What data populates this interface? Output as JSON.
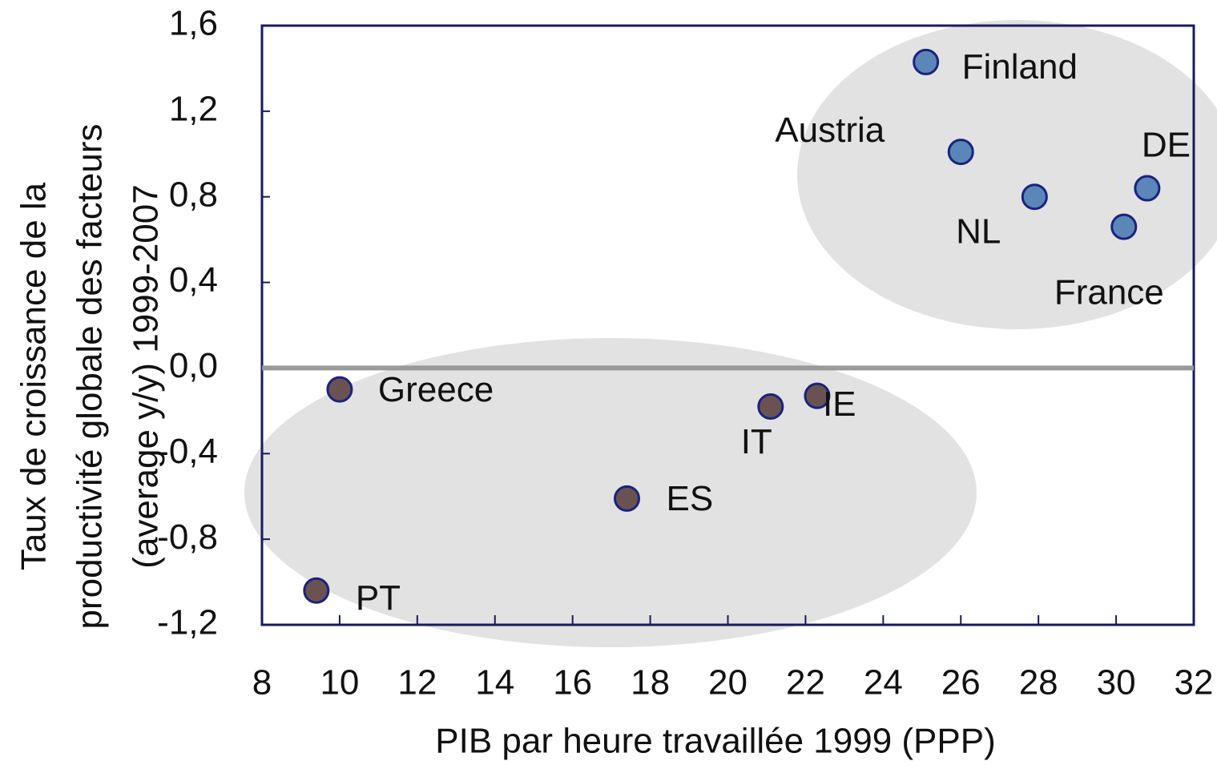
{
  "chart_data": {
    "type": "scatter",
    "xlabel": "PIB par heure travaillée 1999 (PPP)",
    "ylabel": [
      "Taux de croissance de la",
      "productivité globale des facteurs",
      "(average y/y) 1999-2007"
    ],
    "xlim": [
      8,
      32
    ],
    "ylim": [
      -1.2,
      1.6
    ],
    "xticks": [
      8,
      10,
      12,
      14,
      16,
      18,
      20,
      22,
      24,
      26,
      28,
      30,
      32
    ],
    "yticks": [
      {
        "value": 1.6,
        "label": "1,6"
      },
      {
        "value": 1.2,
        "label": "1,2"
      },
      {
        "value": 0.8,
        "label": "0,8"
      },
      {
        "value": 0.4,
        "label": "0,4"
      },
      {
        "value": 0.0,
        "label": "0,0"
      },
      {
        "value": -0.4,
        "label": "-0,4"
      },
      {
        "value": -0.8,
        "label": "-0,8"
      },
      {
        "value": -1.2,
        "label": "-1,2"
      }
    ],
    "points": [
      {
        "label": "Finland",
        "x": 25.1,
        "y": 1.43,
        "color": "#5b86b8"
      },
      {
        "label": "Austria",
        "x": 26.0,
        "y": 1.01,
        "color": "#5b86b8"
      },
      {
        "label": "NL",
        "x": 27.9,
        "y": 0.8,
        "color": "#5b86b8"
      },
      {
        "label": "DE",
        "x": 30.8,
        "y": 0.84,
        "color": "#5b86b8"
      },
      {
        "label": "France",
        "x": 30.2,
        "y": 0.66,
        "color": "#5b86b8"
      },
      {
        "label": "Greece",
        "x": 10.0,
        "y": -0.1,
        "color": "#6b5252"
      },
      {
        "label": "IT",
        "x": 21.1,
        "y": -0.18,
        "color": "#6b5252"
      },
      {
        "label": "IE",
        "x": 22.3,
        "y": -0.13,
        "color": "#6b5252"
      },
      {
        "label": "ES",
        "x": 17.4,
        "y": -0.61,
        "color": "#6b5252"
      },
      {
        "label": "PT",
        "x": 9.4,
        "y": -1.04,
        "color": "#6b5252"
      }
    ]
  }
}
